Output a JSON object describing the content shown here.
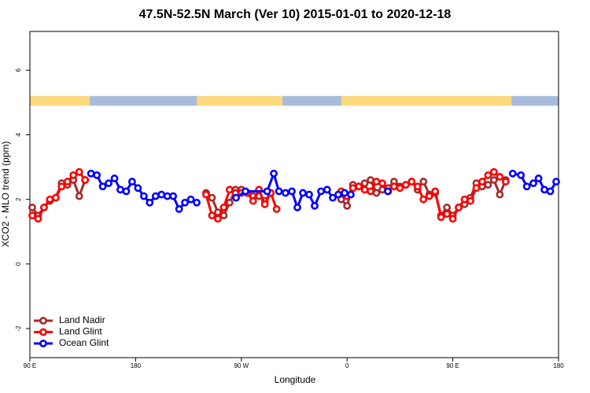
{
  "chart_data": {
    "type": "line",
    "title": "47.5N-52.5N March (Ver 10)   2015-01-01 to 2020-12-18",
    "x_label": "Longitude",
    "y_label": "XCO2 - MLO trend (ppm)",
    "xlim": [
      90,
      540
    ],
    "ylim": [
      -2.9,
      7.2
    ],
    "xticks": [
      {
        "value": 90,
        "label": "90 E"
      },
      {
        "value": 180,
        "label": "180"
      },
      {
        "value": 270,
        "label": "90 W"
      },
      {
        "value": 360,
        "label": "0"
      },
      {
        "value": 450,
        "label": "90 E"
      },
      {
        "value": 540,
        "label": "180"
      }
    ],
    "yticks": [
      -2,
      0,
      2,
      4,
      6
    ],
    "legend": "bottom-left",
    "surface_band": {
      "ylim": [
        4.9,
        5.2
      ],
      "ocean_color": "#a7bcdc",
      "land_color": "#fcd97c",
      "land": [
        [
          90,
          141
        ],
        [
          232,
          305
        ],
        [
          355,
          500
        ]
      ]
    },
    "series": [
      {
        "name": "Land Nadir",
        "color": "#a52a2a",
        "x": [
          92,
          97,
          102,
          107,
          112,
          117,
          122,
          127,
          132,
          137,
          180,
          240,
          245,
          250,
          255,
          260,
          265,
          270,
          275,
          280,
          285,
          290,
          295,
          320,
          355,
          360,
          365,
          370,
          375,
          380,
          385,
          390,
          395,
          400,
          405,
          410,
          415,
          420,
          425,
          430,
          435,
          440,
          445,
          450,
          455,
          460,
          465,
          470,
          475,
          480,
          485,
          490,
          495
        ],
        "values": [
          1.75,
          1.5,
          1.75,
          1.95,
          2.05,
          2.5,
          2.45,
          2.6,
          2.1,
          2.6,
          null,
          2.2,
          2.05,
          1.6,
          1.5,
          1.9,
          2.3,
          2.3,
          2.2,
          2.1,
          2.1,
          1.95,
          2.2,
          null,
          2.0,
          1.8,
          2.45,
          2.4,
          2.5,
          2.6,
          2.2,
          2.3,
          2.35,
          2.55,
          2.4,
          2.45,
          2.55,
          2.3,
          2.55,
          2.15,
          2.2,
          1.5,
          1.75,
          1.5,
          1.75,
          1.85,
          2.05,
          2.5,
          2.4,
          2.45,
          2.6,
          2.15,
          2.6
        ]
      },
      {
        "name": "Land Glint",
        "color": "#ff0000",
        "x": [
          92,
          97,
          102,
          107,
          112,
          117,
          122,
          127,
          132,
          137,
          180,
          240,
          245,
          250,
          255,
          260,
          265,
          270,
          275,
          280,
          285,
          290,
          295,
          300,
          320,
          355,
          360,
          365,
          370,
          375,
          380,
          385,
          390,
          395,
          400,
          405,
          410,
          415,
          420,
          425,
          430,
          435,
          440,
          445,
          450,
          455,
          460,
          465,
          470,
          475,
          480,
          485,
          490,
          495
        ],
        "values": [
          1.5,
          1.4,
          1.75,
          2.0,
          2.05,
          2.4,
          2.55,
          2.75,
          2.85,
          2.6,
          null,
          2.15,
          1.5,
          1.4,
          1.75,
          2.3,
          2.2,
          2.2,
          2.2,
          1.95,
          2.3,
          1.85,
          2.2,
          1.7,
          null,
          2.25,
          2.1,
          2.35,
          2.4,
          2.3,
          2.25,
          2.55,
          2.5,
          2.25,
          2.4,
          2.35,
          2.45,
          2.55,
          2.4,
          2.0,
          2.1,
          2.25,
          1.45,
          1.55,
          1.4,
          1.75,
          2.0,
          1.95,
          2.35,
          2.55,
          2.75,
          2.85,
          2.7,
          2.55
        ]
      },
      {
        "name": "Ocean Glint",
        "color": "#0000ff",
        "x": [
          142,
          147,
          152,
          157,
          162,
          167,
          172,
          177,
          182,
          187,
          192,
          197,
          202,
          207,
          212,
          217,
          222,
          227,
          232,
          250,
          265.5,
          273.5,
          292,
          297.6,
          302,
          307.6,
          313,
          317.7,
          322.4,
          327.7,
          332.4,
          337.8,
          343,
          347.8,
          352.5,
          357.9,
          363.2,
          380,
          394.7,
          450,
          501,
          508,
          513,
          518.6,
          523,
          528,
          533,
          538
        ],
        "values": [
          2.8,
          2.75,
          2.4,
          2.5,
          2.65,
          2.3,
          2.25,
          2.55,
          2.35,
          2.1,
          1.9,
          2.1,
          2.15,
          2.1,
          2.1,
          1.7,
          1.9,
          2.0,
          1.9,
          null,
          2.05,
          2.25,
          2.25,
          2.8,
          2.25,
          2.2,
          2.25,
          1.75,
          2.2,
          2.15,
          1.8,
          2.25,
          2.3,
          2.05,
          2.15,
          2.2,
          2.15,
          null,
          2.25,
          null,
          2.8,
          2.75,
          2.4,
          2.5,
          2.65,
          2.3,
          2.25,
          2.55
        ]
      }
    ]
  }
}
